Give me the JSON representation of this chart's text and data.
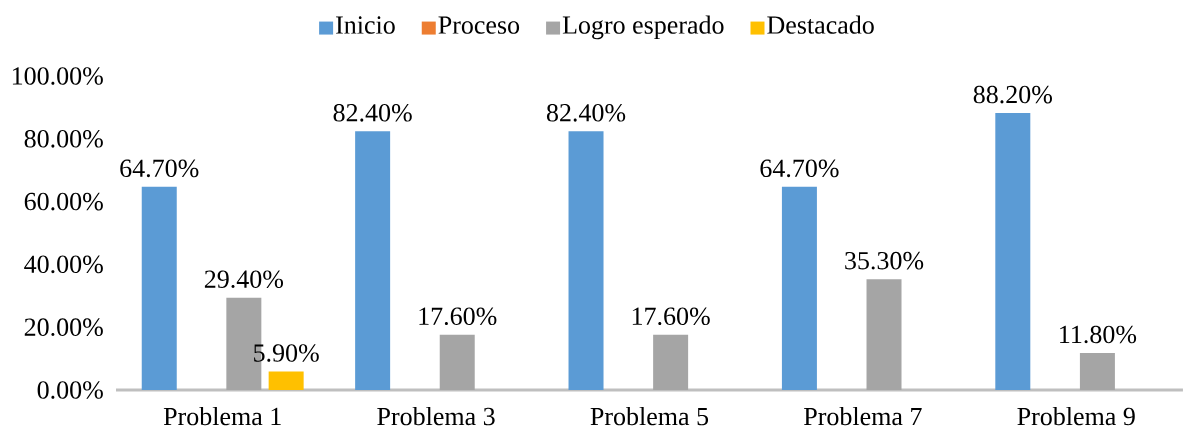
{
  "chart_data": {
    "type": "bar",
    "categories": [
      "Problema 1",
      "Problema 3",
      "Problema 5",
      "Problema 7",
      "Problema 9"
    ],
    "series": [
      {
        "name": "Inicio",
        "color": "#5b9bd5",
        "values": [
          64.7,
          82.4,
          82.4,
          64.7,
          88.2
        ],
        "value_labels": [
          "64.70%",
          "82.40%",
          "82.40%",
          "64.70%",
          "88.20%"
        ]
      },
      {
        "name": "Proceso",
        "color": "#ed7d31",
        "values": [
          null,
          null,
          null,
          null,
          null
        ]
      },
      {
        "name": "Logro esperado",
        "color": "#a5a5a5",
        "values": [
          29.4,
          17.6,
          17.6,
          35.3,
          11.8
        ],
        "value_labels": [
          "29.40%",
          "17.60%",
          "17.60%",
          "35.30%",
          "11.80%"
        ]
      },
      {
        "name": "Destacado",
        "color": "#ffc000",
        "values": [
          5.9,
          null,
          null,
          null,
          null
        ],
        "value_labels": [
          "5.90%",
          null,
          null,
          null,
          null
        ]
      }
    ],
    "ylim": [
      0,
      100
    ],
    "yticks": [
      {
        "value": 0,
        "label": "0.00%"
      },
      {
        "value": 20,
        "label": "20.00%"
      },
      {
        "value": 40,
        "label": "40.00%"
      },
      {
        "value": 60,
        "label": "60.00%"
      },
      {
        "value": 80,
        "label": "80.00%"
      },
      {
        "value": 100,
        "label": "100.00%"
      }
    ],
    "legend": "top"
  }
}
